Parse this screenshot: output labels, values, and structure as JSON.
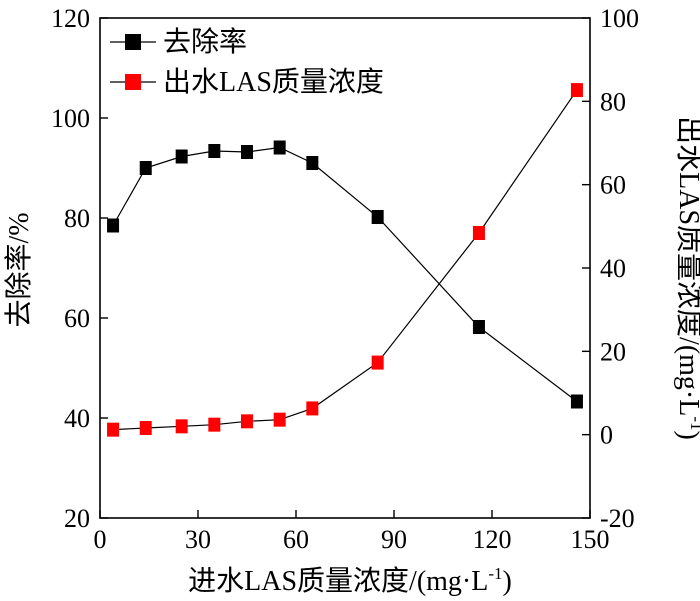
{
  "chart_data": {
    "type": "line",
    "x": [
      4,
      14,
      25,
      35,
      45,
      55,
      65,
      85,
      116,
      146
    ],
    "xlabel": "进水LAS质量浓度/(mg·L",
    "xlabel_sup": "-1",
    "xlabel_end": ")",
    "xlim": [
      0,
      150
    ],
    "xticks": [
      0,
      30,
      60,
      90,
      120,
      150
    ],
    "ylabel_left": "去除率/%",
    "ylim_left": [
      20,
      120
    ],
    "yticks_left": [
      20,
      40,
      60,
      80,
      100,
      120
    ],
    "ylabel_right": "出水LAS质量浓度/(mg·L",
    "ylabel_right_sup": "-1",
    "ylabel_right_end": ")",
    "ylim_right": [
      -20,
      100
    ],
    "yticks_right": [
      -20,
      0,
      20,
      40,
      60,
      80,
      100
    ],
    "legend_position": "top-left",
    "series": [
      {
        "name": "去除率",
        "axis": "left",
        "color": "#000000",
        "marker": "square",
        "values": [
          78.5,
          90,
          92.3,
          93.4,
          93.2,
          94.1,
          91,
          80.2,
          58.2,
          43.3
        ]
      },
      {
        "name": "出水LAS质量浓度",
        "axis": "right",
        "color": "#ff0000",
        "marker": "square",
        "values": [
          1.2,
          1.6,
          2,
          2.4,
          3.2,
          3.6,
          6.3,
          17.3,
          48.4,
          82.7
        ]
      }
    ]
  }
}
